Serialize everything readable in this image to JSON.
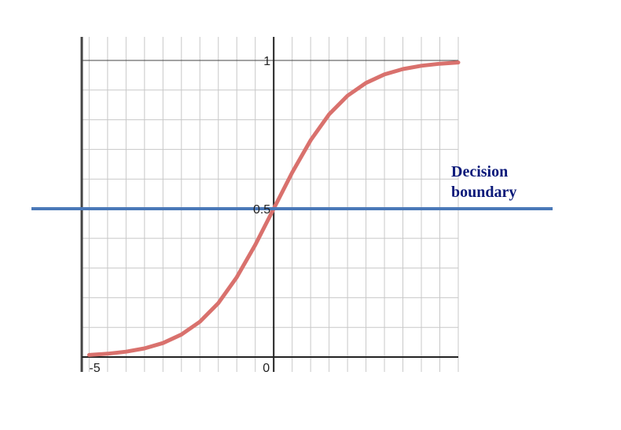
{
  "chart_data": {
    "type": "line",
    "title": "",
    "xlabel": "",
    "ylabel": "",
    "xlim": [
      -5.2,
      5
    ],
    "ylim": [
      0,
      1
    ],
    "grid": true,
    "x_ticks": [
      {
        "value": -5,
        "label": "-5"
      },
      {
        "value": 0,
        "label": "0"
      }
    ],
    "y_ticks": [
      {
        "value": 0.5,
        "label": "0.5"
      },
      {
        "value": 1,
        "label": "1"
      }
    ],
    "series": [
      {
        "color": "#d9716d",
        "x": [
          -5,
          -4.5,
          -4,
          -3.5,
          -3,
          -2.5,
          -2,
          -1.5,
          -1,
          -0.5,
          0,
          0.5,
          1,
          1.5,
          2,
          2.5,
          3,
          3.5,
          4,
          4.5,
          5
        ],
        "y": [
          0.007,
          0.011,
          0.018,
          0.029,
          0.047,
          0.076,
          0.119,
          0.182,
          0.269,
          0.378,
          0.5,
          0.622,
          0.731,
          0.818,
          0.881,
          0.924,
          0.953,
          0.971,
          0.982,
          0.989,
          0.993
        ]
      }
    ],
    "decision_boundary": {
      "y": 0.5,
      "color": "#4a78b8"
    },
    "annotation": {
      "lines": [
        "Decision",
        "boundary"
      ],
      "color": "#0b1a7a"
    }
  }
}
